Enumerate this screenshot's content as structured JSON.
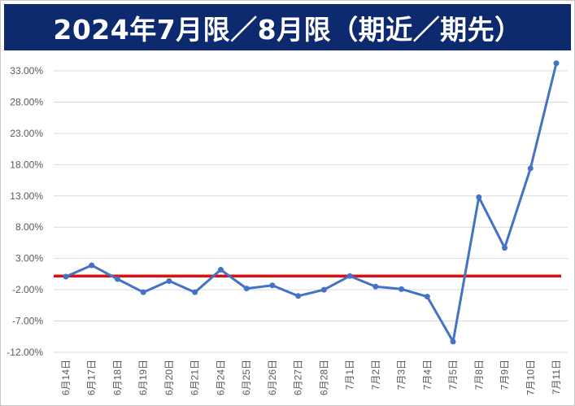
{
  "title": "2024年7月限／8月限（期近／期先）",
  "chart_data": {
    "type": "line",
    "title": "2024年7月限／8月限（期近／期先）",
    "xlabel": "",
    "ylabel": "",
    "ylim": [
      -12,
      33
    ],
    "yticks": [
      33,
      28,
      23,
      18,
      13,
      8,
      3,
      -2,
      -7,
      -12
    ],
    "ytick_labels": [
      "33.00%",
      "28.00%",
      "23.00%",
      "18.00%",
      "13.00%",
      "8.00%",
      "3.00%",
      "-2.00%",
      "-7.00%",
      "-12.00%"
    ],
    "grid": true,
    "categories": [
      "6月14日",
      "6月17日",
      "6月18日",
      "6月19日",
      "6月20日",
      "6月21日",
      "6月24日",
      "6月25日",
      "6月26日",
      "6月27日",
      "6月28日",
      "7月1日",
      "7月2日",
      "7月3日",
      "7月4日",
      "7月5日",
      "7月8日",
      "7月9日",
      "7月10日",
      "7月11日"
    ],
    "series": [
      {
        "color": "#4472c4",
        "values": [
          0.1,
          1.9,
          -0.3,
          -2.4,
          -0.6,
          -2.4,
          1.2,
          -1.8,
          -1.3,
          -3.0,
          -2.0,
          0.2,
          -1.5,
          -1.9,
          -3.1,
          -10.3,
          12.8,
          4.7,
          17.4,
          34.2
        ]
      }
    ],
    "reference_line": {
      "value": 0.2,
      "color": "#e01010"
    }
  }
}
